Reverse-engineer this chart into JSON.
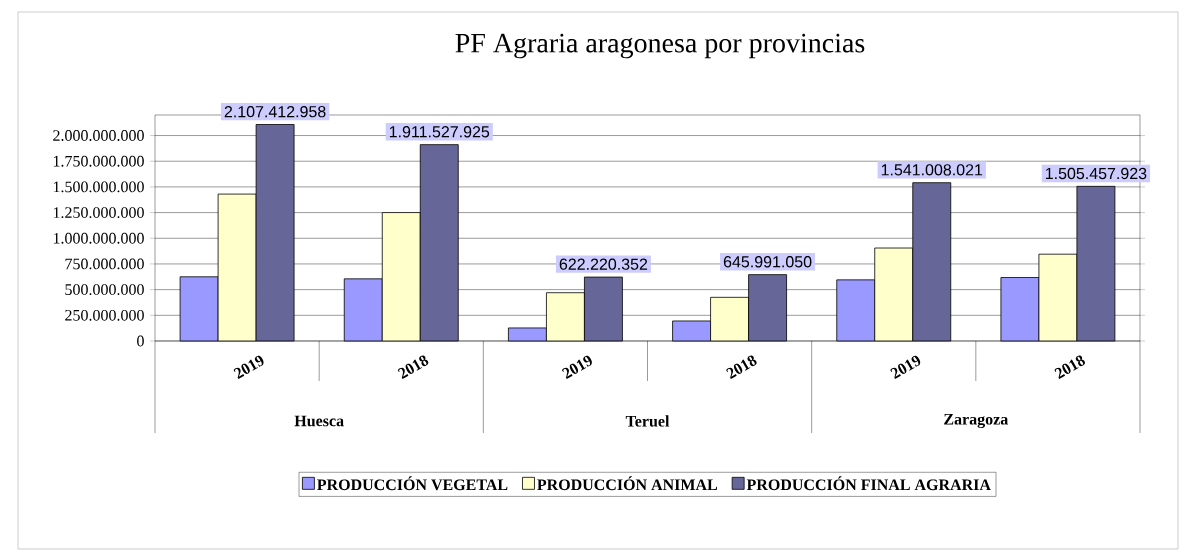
{
  "chart_data": {
    "type": "bar",
    "title": "PF Agraria aragonesa por provincias",
    "categories": [
      "2019",
      "2018",
      "2019",
      "2018",
      "2019",
      "2018"
    ],
    "annotations": [
      "Huesca",
      "Teruel",
      "Zaragoza"
    ],
    "series": [
      {
        "name": "PRODUCCIÓN VEGETAL",
        "color": "#9999ff",
        "values": [
          625000000,
          605000000,
          127000000,
          195000000,
          595000000,
          618000000
        ]
      },
      {
        "name": "PRODUCCIÓN ANIMAL",
        "color": "#ffffcc",
        "values": [
          1430000000,
          1250000000,
          470000000,
          425000000,
          905000000,
          845000000
        ]
      },
      {
        "name": "PRODUCCIÓN FINAL AGRARIA",
        "color": "#666699",
        "values": [
          2107412958,
          1911527925,
          622220352,
          645991050,
          1541008021,
          1505457923
        ],
        "value_labels": [
          "2.107.412.958",
          "1.911.527.925",
          "622.220.352",
          "645.991.050",
          "1.541.008.021",
          "1.505.457.923"
        ]
      }
    ],
    "ylim": [
      0,
      2200000000
    ],
    "yticks": [
      {
        "value": 0,
        "label": "0"
      },
      {
        "value": 250000000,
        "label": "250.000.000"
      },
      {
        "value": 500000000,
        "label": "500.000.000"
      },
      {
        "value": 750000000,
        "label": "750.000.000"
      },
      {
        "value": 1000000000,
        "label": "1.000.000.000"
      },
      {
        "value": 1250000000,
        "label": "1.250.000.000"
      },
      {
        "value": 1500000000,
        "label": "1.500.000.000"
      },
      {
        "value": 1750000000,
        "label": "1.750.000.000"
      },
      {
        "value": 2000000000,
        "label": "2.000.000.000"
      }
    ],
    "grid": "y",
    "legend": "bottom"
  }
}
